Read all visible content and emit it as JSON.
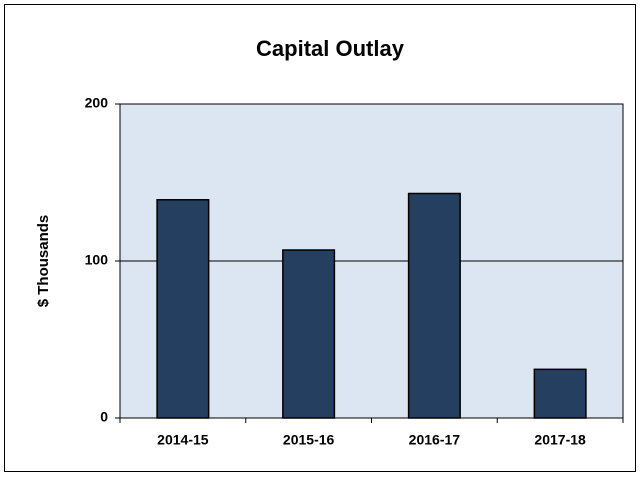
{
  "chart_data": {
    "type": "bar",
    "title": "Capital Outlay",
    "y_label": "$ Thousands",
    "categories": [
      "2014-15",
      "2015-16",
      "2016-17",
      "2017-18"
    ],
    "values": [
      139,
      107,
      143,
      31
    ],
    "color": "#243f60",
    "ylim": [
      0,
      200
    ],
    "yticks": [
      0,
      100,
      200
    ],
    "grid": true
  }
}
